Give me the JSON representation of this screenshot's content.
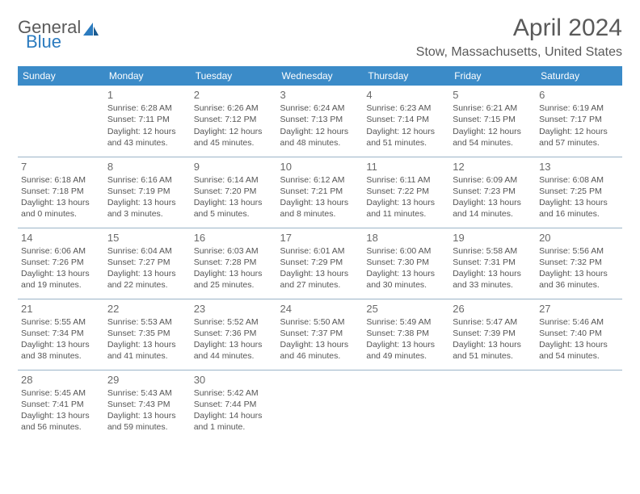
{
  "brand": {
    "general": "General",
    "blue": "Blue"
  },
  "title": "April 2024",
  "location": "Stow, Massachusetts, United States",
  "header_bg": "#3b8bc8",
  "weekdays": [
    "Sunday",
    "Monday",
    "Tuesday",
    "Wednesday",
    "Thursday",
    "Friday",
    "Saturday"
  ],
  "weeks": [
    [
      null,
      {
        "n": "1",
        "sr": "6:28 AM",
        "ss": "7:11 PM",
        "dl": "12 hours and 43 minutes."
      },
      {
        "n": "2",
        "sr": "6:26 AM",
        "ss": "7:12 PM",
        "dl": "12 hours and 45 minutes."
      },
      {
        "n": "3",
        "sr": "6:24 AM",
        "ss": "7:13 PM",
        "dl": "12 hours and 48 minutes."
      },
      {
        "n": "4",
        "sr": "6:23 AM",
        "ss": "7:14 PM",
        "dl": "12 hours and 51 minutes."
      },
      {
        "n": "5",
        "sr": "6:21 AM",
        "ss": "7:15 PM",
        "dl": "12 hours and 54 minutes."
      },
      {
        "n": "6",
        "sr": "6:19 AM",
        "ss": "7:17 PM",
        "dl": "12 hours and 57 minutes."
      }
    ],
    [
      {
        "n": "7",
        "sr": "6:18 AM",
        "ss": "7:18 PM",
        "dl": "13 hours and 0 minutes."
      },
      {
        "n": "8",
        "sr": "6:16 AM",
        "ss": "7:19 PM",
        "dl": "13 hours and 3 minutes."
      },
      {
        "n": "9",
        "sr": "6:14 AM",
        "ss": "7:20 PM",
        "dl": "13 hours and 5 minutes."
      },
      {
        "n": "10",
        "sr": "6:12 AM",
        "ss": "7:21 PM",
        "dl": "13 hours and 8 minutes."
      },
      {
        "n": "11",
        "sr": "6:11 AM",
        "ss": "7:22 PM",
        "dl": "13 hours and 11 minutes."
      },
      {
        "n": "12",
        "sr": "6:09 AM",
        "ss": "7:23 PM",
        "dl": "13 hours and 14 minutes."
      },
      {
        "n": "13",
        "sr": "6:08 AM",
        "ss": "7:25 PM",
        "dl": "13 hours and 16 minutes."
      }
    ],
    [
      {
        "n": "14",
        "sr": "6:06 AM",
        "ss": "7:26 PM",
        "dl": "13 hours and 19 minutes."
      },
      {
        "n": "15",
        "sr": "6:04 AM",
        "ss": "7:27 PM",
        "dl": "13 hours and 22 minutes."
      },
      {
        "n": "16",
        "sr": "6:03 AM",
        "ss": "7:28 PM",
        "dl": "13 hours and 25 minutes."
      },
      {
        "n": "17",
        "sr": "6:01 AM",
        "ss": "7:29 PM",
        "dl": "13 hours and 27 minutes."
      },
      {
        "n": "18",
        "sr": "6:00 AM",
        "ss": "7:30 PM",
        "dl": "13 hours and 30 minutes."
      },
      {
        "n": "19",
        "sr": "5:58 AM",
        "ss": "7:31 PM",
        "dl": "13 hours and 33 minutes."
      },
      {
        "n": "20",
        "sr": "5:56 AM",
        "ss": "7:32 PM",
        "dl": "13 hours and 36 minutes."
      }
    ],
    [
      {
        "n": "21",
        "sr": "5:55 AM",
        "ss": "7:34 PM",
        "dl": "13 hours and 38 minutes."
      },
      {
        "n": "22",
        "sr": "5:53 AM",
        "ss": "7:35 PM",
        "dl": "13 hours and 41 minutes."
      },
      {
        "n": "23",
        "sr": "5:52 AM",
        "ss": "7:36 PM",
        "dl": "13 hours and 44 minutes."
      },
      {
        "n": "24",
        "sr": "5:50 AM",
        "ss": "7:37 PM",
        "dl": "13 hours and 46 minutes."
      },
      {
        "n": "25",
        "sr": "5:49 AM",
        "ss": "7:38 PM",
        "dl": "13 hours and 49 minutes."
      },
      {
        "n": "26",
        "sr": "5:47 AM",
        "ss": "7:39 PM",
        "dl": "13 hours and 51 minutes."
      },
      {
        "n": "27",
        "sr": "5:46 AM",
        "ss": "7:40 PM",
        "dl": "13 hours and 54 minutes."
      }
    ],
    [
      {
        "n": "28",
        "sr": "5:45 AM",
        "ss": "7:41 PM",
        "dl": "13 hours and 56 minutes."
      },
      {
        "n": "29",
        "sr": "5:43 AM",
        "ss": "7:43 PM",
        "dl": "13 hours and 59 minutes."
      },
      {
        "n": "30",
        "sr": "5:42 AM",
        "ss": "7:44 PM",
        "dl": "14 hours and 1 minute."
      },
      null,
      null,
      null,
      null
    ]
  ],
  "labels": {
    "sunrise": "Sunrise:",
    "sunset": "Sunset:",
    "daylight": "Daylight:"
  }
}
